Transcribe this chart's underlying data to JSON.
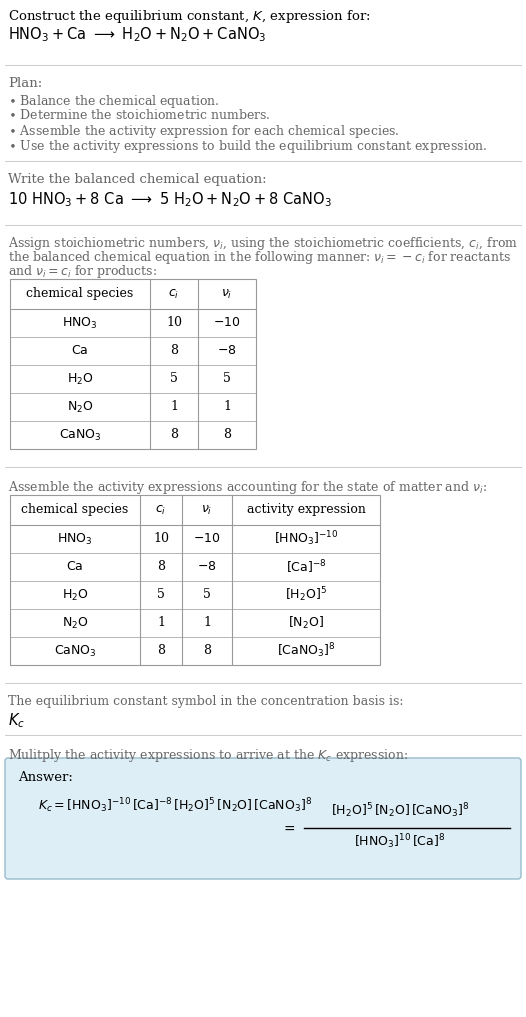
{
  "bg_color": "#ffffff",
  "text_color": "#000000",
  "gray_text": "#666666",
  "light_blue_bg": "#ddeef6",
  "table_border": "#999999",
  "divider_color": "#cccccc",
  "table1_rows": [
    [
      "$\\mathrm{HNO_3}$",
      "10",
      "$-10$"
    ],
    [
      "$\\mathrm{Ca}$",
      "8",
      "$-8$"
    ],
    [
      "$\\mathrm{H_2O}$",
      "5",
      "5"
    ],
    [
      "$\\mathrm{N_2O}$",
      "1",
      "1"
    ],
    [
      "$\\mathrm{CaNO_3}$",
      "8",
      "8"
    ]
  ],
  "table2_rows": [
    [
      "$\\mathrm{HNO_3}$",
      "10",
      "$-10$",
      "$[\\mathrm{HNO_3}]^{-10}$"
    ],
    [
      "$\\mathrm{Ca}$",
      "8",
      "$-8$",
      "$[\\mathrm{Ca}]^{-8}$"
    ],
    [
      "$\\mathrm{H_2O}$",
      "5",
      "5",
      "$[\\mathrm{H_2O}]^{5}$"
    ],
    [
      "$\\mathrm{N_2O}$",
      "1",
      "1",
      "$[\\mathrm{N_2O}]$"
    ],
    [
      "$\\mathrm{CaNO_3}$",
      "8",
      "8",
      "$[\\mathrm{CaNO_3}]^{8}$"
    ]
  ]
}
